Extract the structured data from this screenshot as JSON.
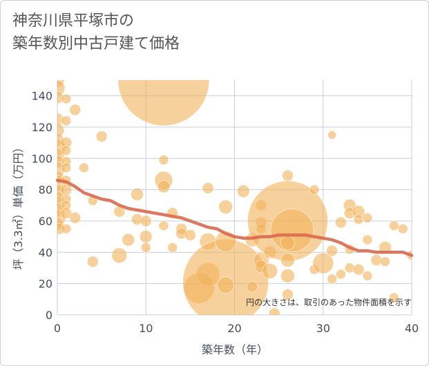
{
  "title_lines": [
    "神奈川県平塚市の",
    "築年数別中古戸建て価格"
  ],
  "note": "円の大きさは、取引のあった物件面積を示す",
  "chart_data": {
    "type": "scatter",
    "xlabel": "築年数（年）",
    "ylabel": "坪（3.3㎡）単価（万円）",
    "xlim": [
      0,
      40
    ],
    "ylim": [
      0,
      150
    ],
    "x_ticks": [
      0,
      10,
      20,
      30,
      40
    ],
    "y_ticks": [
      0,
      20,
      40,
      60,
      80,
      100,
      120,
      140
    ],
    "grid": true,
    "colors": {
      "bubble": "#f2b25a",
      "trend": "#d9694f",
      "grid": "#c5cfdc"
    },
    "bubbles": [
      {
        "x": 0,
        "y": 150,
        "s": 10
      },
      {
        "x": 0,
        "y": 145,
        "s": 11
      },
      {
        "x": 0,
        "y": 139,
        "s": 9
      },
      {
        "x": 0,
        "y": 125,
        "s": 9
      },
      {
        "x": 0,
        "y": 118,
        "s": 10
      },
      {
        "x": 0,
        "y": 112,
        "s": 9
      },
      {
        "x": 0,
        "y": 107,
        "s": 12
      },
      {
        "x": 0,
        "y": 102,
        "s": 10
      },
      {
        "x": 0,
        "y": 98,
        "s": 9
      },
      {
        "x": 0,
        "y": 93,
        "s": 11
      },
      {
        "x": 0,
        "y": 88,
        "s": 9
      },
      {
        "x": 0,
        "y": 84,
        "s": 12
      },
      {
        "x": 0,
        "y": 79,
        "s": 10
      },
      {
        "x": 0,
        "y": 75,
        "s": 9
      },
      {
        "x": 0,
        "y": 71,
        "s": 11
      },
      {
        "x": 0,
        "y": 67,
        "s": 10
      },
      {
        "x": 0,
        "y": 62,
        "s": 12
      },
      {
        "x": 0,
        "y": 58,
        "s": 9
      },
      {
        "x": 0.2,
        "y": 55,
        "s": 8
      },
      {
        "x": 1,
        "y": 138,
        "s": 7
      },
      {
        "x": 1,
        "y": 124,
        "s": 7
      },
      {
        "x": 1,
        "y": 110,
        "s": 8
      },
      {
        "x": 1,
        "y": 105,
        "s": 7
      },
      {
        "x": 1,
        "y": 98,
        "s": 7
      },
      {
        "x": 1,
        "y": 94,
        "s": 7
      },
      {
        "x": 1,
        "y": 86,
        "s": 7
      },
      {
        "x": 1,
        "y": 80,
        "s": 8
      },
      {
        "x": 1,
        "y": 74,
        "s": 7
      },
      {
        "x": 1,
        "y": 70,
        "s": 7
      },
      {
        "x": 1,
        "y": 65,
        "s": 8
      },
      {
        "x": 1,
        "y": 55,
        "s": 7
      },
      {
        "x": 2,
        "y": 131,
        "s": 8
      },
      {
        "x": 2,
        "y": 62,
        "s": 8
      },
      {
        "x": 3,
        "y": 94,
        "s": 7
      },
      {
        "x": 4,
        "y": 73,
        "s": 7
      },
      {
        "x": 4,
        "y": 34,
        "s": 8
      },
      {
        "x": 5,
        "y": 114,
        "s": 8
      },
      {
        "x": 7,
        "y": 66,
        "s": 8
      },
      {
        "x": 7,
        "y": 38,
        "s": 11
      },
      {
        "x": 8,
        "y": 48,
        "s": 9
      },
      {
        "x": 9,
        "y": 77,
        "s": 9
      },
      {
        "x": 9,
        "y": 61,
        "s": 8
      },
      {
        "x": 10,
        "y": 60,
        "s": 8
      },
      {
        "x": 10,
        "y": 50,
        "s": 9
      },
      {
        "x": 10,
        "y": 43,
        "s": 7
      },
      {
        "x": 12,
        "y": 150,
        "s": 66
      },
      {
        "x": 12,
        "y": 99,
        "s": 7
      },
      {
        "x": 12,
        "y": 86,
        "s": 13
      },
      {
        "x": 12,
        "y": 82,
        "s": 9
      },
      {
        "x": 12,
        "y": 57,
        "s": 7
      },
      {
        "x": 13,
        "y": 65,
        "s": 8
      },
      {
        "x": 13,
        "y": 43,
        "s": 7
      },
      {
        "x": 14,
        "y": 55,
        "s": 8
      },
      {
        "x": 14,
        "y": 52,
        "s": 8
      },
      {
        "x": 15,
        "y": 51,
        "s": 8
      },
      {
        "x": 16,
        "y": 17,
        "s": 22
      },
      {
        "x": 17,
        "y": 81,
        "s": 8
      },
      {
        "x": 17,
        "y": 47,
        "s": 12
      },
      {
        "x": 17,
        "y": 26,
        "s": 17
      },
      {
        "x": 19,
        "y": 21,
        "s": 62
      },
      {
        "x": 19,
        "y": 69,
        "s": 10
      },
      {
        "x": 19,
        "y": 47,
        "s": 15
      },
      {
        "x": 19,
        "y": 19,
        "s": 12
      },
      {
        "x": 21,
        "y": 79,
        "s": 9
      },
      {
        "x": 22,
        "y": 48,
        "s": 10
      },
      {
        "x": 22,
        "y": 18,
        "s": 8
      },
      {
        "x": 23,
        "y": 70,
        "s": 8
      },
      {
        "x": 23,
        "y": 59,
        "s": 8
      },
      {
        "x": 23,
        "y": 55,
        "s": 7
      },
      {
        "x": 23,
        "y": 35,
        "s": 11
      },
      {
        "x": 23,
        "y": 31,
        "s": 9
      },
      {
        "x": 24,
        "y": 40,
        "s": 9
      },
      {
        "x": 24,
        "y": 28,
        "s": 11
      },
      {
        "x": 24.5,
        "y": 1,
        "s": 8
      },
      {
        "x": 26,
        "y": 60,
        "s": 58
      },
      {
        "x": 26.5,
        "y": 54,
        "s": 31
      },
      {
        "x": 26,
        "y": 89,
        "s": 8
      },
      {
        "x": 26,
        "y": 46,
        "s": 10
      },
      {
        "x": 26,
        "y": 35,
        "s": 10
      },
      {
        "x": 26,
        "y": 25,
        "s": 10
      },
      {
        "x": 26,
        "y": 13,
        "s": 8
      },
      {
        "x": 29,
        "y": 80,
        "s": 7
      },
      {
        "x": 29,
        "y": 29,
        "s": 7
      },
      {
        "x": 30,
        "y": 33,
        "s": 15
      },
      {
        "x": 31,
        "y": 115,
        "s": 6
      },
      {
        "x": 31,
        "y": 41,
        "s": 8
      },
      {
        "x": 31,
        "y": 23,
        "s": 7
      },
      {
        "x": 32,
        "y": 59,
        "s": 8
      },
      {
        "x": 32,
        "y": 26,
        "s": 7
      },
      {
        "x": 33,
        "y": 70,
        "s": 9
      },
      {
        "x": 33,
        "y": 65,
        "s": 8
      },
      {
        "x": 33,
        "y": 42,
        "s": 7
      },
      {
        "x": 33,
        "y": 30,
        "s": 7
      },
      {
        "x": 34,
        "y": 66,
        "s": 9
      },
      {
        "x": 34,
        "y": 61,
        "s": 7
      },
      {
        "x": 34,
        "y": 29,
        "s": 8
      },
      {
        "x": 35,
        "y": 62,
        "s": 7
      },
      {
        "x": 35,
        "y": 48,
        "s": 7
      },
      {
        "x": 35,
        "y": 25,
        "s": 7
      },
      {
        "x": 36,
        "y": 35,
        "s": 8
      },
      {
        "x": 37,
        "y": 43,
        "s": 9
      },
      {
        "x": 37,
        "y": 34,
        "s": 7
      },
      {
        "x": 38,
        "y": 57,
        "s": 7
      },
      {
        "x": 38,
        "y": 11,
        "s": 7
      },
      {
        "x": 39,
        "y": 55,
        "s": 7
      },
      {
        "x": 40,
        "y": 38,
        "s": 7
      }
    ],
    "trend": {
      "x": [
        0,
        1,
        2,
        3,
        4,
        5,
        6,
        7,
        8,
        9,
        10,
        11,
        12,
        13,
        14,
        15,
        16,
        17,
        18,
        19,
        20,
        21,
        22,
        23,
        24,
        25,
        26,
        27,
        28,
        29,
        30,
        31,
        32,
        33,
        34,
        35,
        36,
        37,
        38,
        39,
        40
      ],
      "y": [
        86,
        85,
        82,
        78,
        76,
        74,
        73,
        70,
        68,
        67,
        66,
        65,
        64,
        63,
        62,
        60,
        58,
        56,
        55,
        52,
        50,
        49,
        49,
        50,
        50,
        51,
        51,
        51,
        51,
        50,
        49,
        48,
        46,
        43,
        41,
        41,
        40,
        40,
        40,
        40,
        38
      ]
    }
  }
}
